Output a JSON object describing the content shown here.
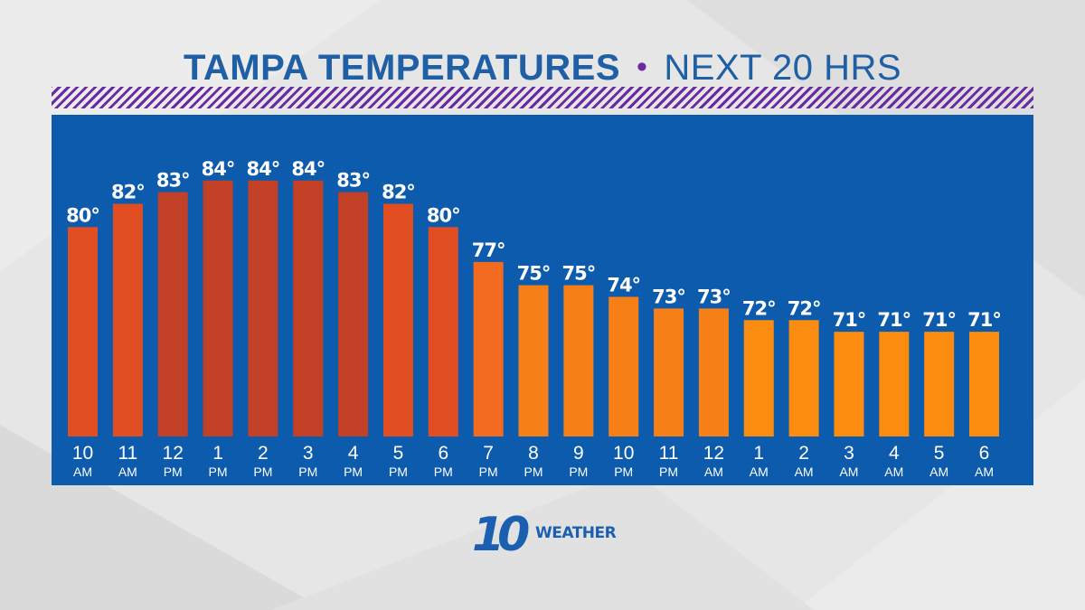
{
  "title": {
    "city_part": "TAMPA TEMPERATURES",
    "separator": "•",
    "period_part": "NEXT 20 HRS"
  },
  "colors": {
    "panel": "#0d5bad",
    "title": "#1f5fa6",
    "accent": "#6a2ba2",
    "warm": "#e04e22",
    "hot": "#c24026",
    "mild": "#f26b21",
    "cool": "#f77f18",
    "coolest": "#fb8c10"
  },
  "logo": {
    "number": "10",
    "word": "WEATHER"
  },
  "chart_data": {
    "type": "bar",
    "title": "TAMPA TEMPERATURES • NEXT 20 HRS",
    "unit": "°",
    "categories": [
      {
        "hour": "10",
        "period": "AM"
      },
      {
        "hour": "11",
        "period": "AM"
      },
      {
        "hour": "12",
        "period": "PM"
      },
      {
        "hour": "1",
        "period": "PM"
      },
      {
        "hour": "2",
        "period": "PM"
      },
      {
        "hour": "3",
        "period": "PM"
      },
      {
        "hour": "4",
        "period": "PM"
      },
      {
        "hour": "5",
        "period": "PM"
      },
      {
        "hour": "6",
        "period": "PM"
      },
      {
        "hour": "7",
        "period": "PM"
      },
      {
        "hour": "8",
        "period": "PM"
      },
      {
        "hour": "9",
        "period": "PM"
      },
      {
        "hour": "10",
        "period": "PM"
      },
      {
        "hour": "11",
        "period": "PM"
      },
      {
        "hour": "12",
        "period": "AM"
      },
      {
        "hour": "1",
        "period": "AM"
      },
      {
        "hour": "2",
        "period": "AM"
      },
      {
        "hour": "3",
        "period": "AM"
      },
      {
        "hour": "4",
        "period": "AM"
      },
      {
        "hour": "5",
        "period": "AM"
      },
      {
        "hour": "6",
        "period": "AM"
      }
    ],
    "values": [
      80,
      82,
      83,
      84,
      84,
      84,
      83,
      82,
      80,
      77,
      75,
      75,
      74,
      73,
      73,
      72,
      72,
      71,
      71,
      71,
      71
    ],
    "value_labels": [
      "80°",
      "82°",
      "83°",
      "84°",
      "84°",
      "84°",
      "83°",
      "82°",
      "80°",
      "77°",
      "75°",
      "75°",
      "74°",
      "73°",
      "73°",
      "72°",
      "72°",
      "71°",
      "71°",
      "71°",
      "71°"
    ],
    "ylim": [
      62,
      86
    ],
    "grid": false,
    "xlabel": "",
    "ylabel": ""
  }
}
